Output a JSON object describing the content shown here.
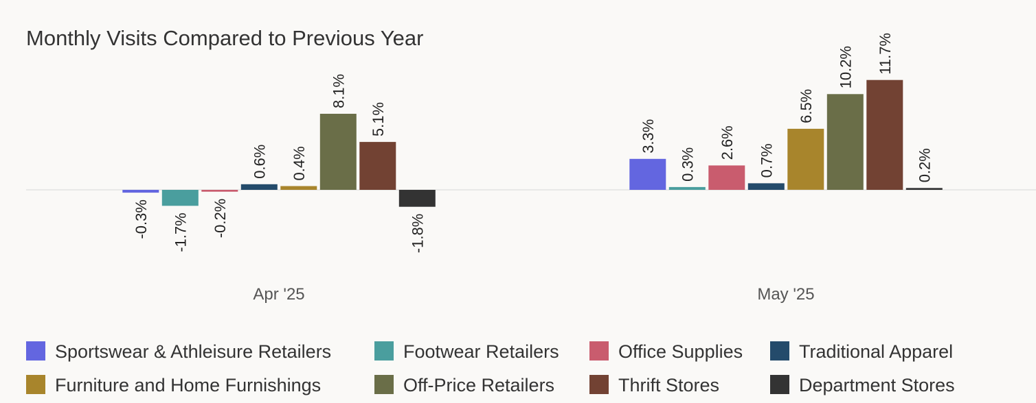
{
  "chart_data": {
    "type": "bar",
    "title": "Monthly Visits Compared to Previous Year",
    "categories": [
      "Apr '25",
      "May '25"
    ],
    "value_suffix": "%",
    "ylim": [
      -4,
      13
    ],
    "grid": false,
    "legend_placement": "bottom",
    "series": [
      {
        "name": "Sportswear & Athleisure Retailers",
        "color": "#6366e0",
        "values": [
          -0.3,
          3.3
        ]
      },
      {
        "name": "Footwear Retailers",
        "color": "#4a9e9e",
        "values": [
          -1.7,
          0.3
        ]
      },
      {
        "name": "Office Supplies",
        "color": "#c95c6e",
        "values": [
          -0.2,
          2.6
        ]
      },
      {
        "name": "Traditional Apparel",
        "color": "#244b6b",
        "values": [
          0.6,
          0.7
        ]
      },
      {
        "name": "Furniture and Home Furnishings",
        "color": "#a8852c",
        "values": [
          0.4,
          6.5
        ]
      },
      {
        "name": "Off-Price Retailers",
        "color": "#6a6e48",
        "values": [
          8.1,
          10.2
        ]
      },
      {
        "name": "Thrift Stores",
        "color": "#724233",
        "values": [
          5.1,
          11.7
        ]
      },
      {
        "name": "Department Stores",
        "color": "#333333",
        "values": [
          -1.8,
          0.2
        ]
      }
    ]
  }
}
